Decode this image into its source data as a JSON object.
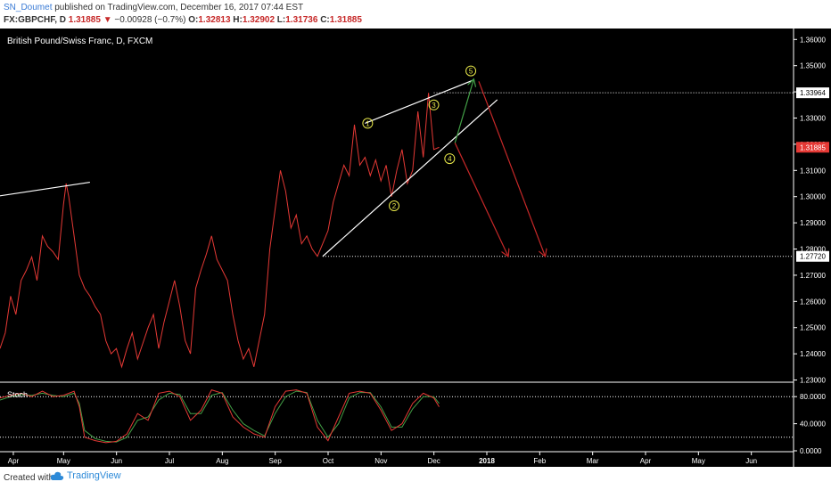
{
  "header": {
    "author": "SN_Doumet",
    "published_text": "published on TradingView.com, December 16, 2017 07:44 EST",
    "symbol": "FX:GBPCHF, D",
    "close_main": "1.31885",
    "change": "−0.00928 (−0.7%)",
    "o_label": "O:",
    "o_val": "1.32813",
    "h_label": "H:",
    "h_val": "1.32902",
    "l_label": "L:",
    "l_val": "1.31736",
    "c_label": "C:",
    "c_val": "1.31885"
  },
  "footer": {
    "created_with": "Created with",
    "brand": "TradingView"
  },
  "chart_data": {
    "type": "line",
    "title": "British Pound/Swiss Franc, D, FXCM",
    "price_axis": {
      "ticks": [
        "1.36000",
        "1.35000",
        "1.34000",
        "1.33000",
        "1.32000",
        "1.31000",
        "1.30000",
        "1.29000",
        "1.28000",
        "1.27000",
        "1.26000",
        "1.25000",
        "1.24000",
        "1.23000"
      ],
      "ylim": [
        1.2295,
        1.3635
      ],
      "badges": [
        {
          "value": 1.33964,
          "label": "1.33964",
          "color": "#ffffff",
          "text_color": "#000000"
        },
        {
          "value": 1.31885,
          "label": "1.31885",
          "color": "#e53935",
          "text_color": "#ffffff"
        },
        {
          "value": 1.2772,
          "label": "1.27720",
          "color": "#ffffff",
          "text_color": "#000000"
        }
      ]
    },
    "x_axis": {
      "labels": [
        "Apr",
        "May",
        "Jun",
        "Jul",
        "Aug",
        "Sep",
        "Oct",
        "Nov",
        "Dec",
        "2018",
        "Feb",
        "Mar",
        "Apr",
        "May",
        "Jun"
      ],
      "xlim": [
        0,
        15
      ],
      "ticks_at": [
        0.05,
        1.0,
        2.0,
        3.0,
        4.0,
        5.0,
        6.0,
        7.0,
        8.0,
        9.0,
        10.0,
        11.0,
        12.0,
        13.0,
        14.0
      ]
    },
    "price_series": {
      "color": "#e53935",
      "x": [
        0.0,
        0.1,
        0.2,
        0.3,
        0.4,
        0.5,
        0.6,
        0.7,
        0.8,
        0.9,
        1.0,
        1.1,
        1.2,
        1.25,
        1.3,
        1.4,
        1.5,
        1.6,
        1.7,
        1.8,
        1.9,
        2.0,
        2.1,
        2.2,
        2.3,
        2.4,
        2.5,
        2.6,
        2.7,
        2.8,
        2.9,
        3.0,
        3.1,
        3.2,
        3.3,
        3.4,
        3.5,
        3.6,
        3.7,
        3.8,
        3.9,
        4.0,
        4.1,
        4.2,
        4.3,
        4.4,
        4.5,
        4.6,
        4.7,
        4.8,
        4.9,
        5.0,
        5.1,
        5.2,
        5.3,
        5.4,
        5.5,
        5.6,
        5.7,
        5.8,
        5.9,
        6.0,
        6.1,
        6.2,
        6.3,
        6.4,
        6.5,
        6.6,
        6.7,
        6.8,
        6.9,
        7.0,
        7.1,
        7.2,
        7.3,
        7.4,
        7.5,
        7.6,
        7.7,
        7.8,
        7.9,
        8.0,
        8.1,
        8.2,
        8.3
      ],
      "y": [
        1.242,
        1.248,
        1.262,
        1.255,
        1.268,
        1.272,
        1.277,
        1.268,
        1.285,
        1.281,
        1.279,
        1.276,
        1.297,
        1.305,
        1.3,
        1.285,
        1.27,
        1.265,
        1.262,
        1.258,
        1.255,
        1.245,
        1.24,
        1.242,
        1.235,
        1.242,
        1.248,
        1.238,
        1.244,
        1.25,
        1.255,
        1.242,
        1.252,
        1.26,
        1.268,
        1.258,
        1.245,
        1.24,
        1.265,
        1.272,
        1.278,
        1.285,
        1.276,
        1.272,
        1.268,
        1.255,
        1.245,
        1.238,
        1.242,
        1.235,
        1.245,
        1.255,
        1.28,
        1.295,
        1.31,
        1.302,
        1.288,
        1.293,
        1.282,
        1.285,
        1.28,
        1.2772,
        1.282,
        1.287,
        1.298,
        1.305,
        1.312,
        1.308,
        1.3275,
        1.312,
        1.315,
        1.308,
        1.314,
        1.306,
        1.312,
        1.3,
        1.31,
        1.318,
        1.305,
        1.31,
        1.3325,
        1.315,
        1.3396,
        1.318,
        1.3188
      ]
    },
    "annotations": {
      "labels": [
        "1",
        "2",
        "3",
        "4",
        "5"
      ],
      "label_points": [
        [
          6.95,
          1.328
        ],
        [
          7.45,
          1.2965
        ],
        [
          8.2,
          1.335
        ],
        [
          8.5,
          1.3145
        ],
        [
          8.9,
          1.348
        ]
      ],
      "white_lines": [
        [
          [
            -0.1,
            1.3
          ],
          [
            1.7,
            1.3055
          ]
        ],
        [
          [
            6.1,
            1.2772
          ],
          [
            9.4,
            1.337
          ]
        ],
        [
          [
            6.9,
            1.328
          ],
          [
            8.95,
            1.3445
          ]
        ]
      ],
      "dotted_levels": [
        1.33964,
        1.2772
      ],
      "green_arrow": [
        [
          8.6,
          1.3205
        ],
        [
          8.95,
          1.3445
        ]
      ],
      "red_arrows": [
        [
          [
            8.6,
            1.3205
          ],
          [
            9.6,
            1.2775
          ]
        ],
        [
          [
            9.05,
            1.344
          ],
          [
            10.3,
            1.2775
          ]
        ]
      ]
    },
    "stochastic": {
      "label": "Stoch",
      "ticks": [
        "80.0000",
        "40.0000",
        "0.0000"
      ],
      "ylim": [
        0,
        100
      ],
      "upper_band": 80,
      "lower_band": 20,
      "k_color": "#e53935",
      "d_color": "#43a047",
      "x": [
        0.0,
        0.2,
        0.4,
        0.6,
        0.8,
        1.0,
        1.2,
        1.4,
        1.5,
        1.6,
        1.8,
        2.0,
        2.2,
        2.4,
        2.6,
        2.8,
        3.0,
        3.2,
        3.4,
        3.6,
        3.8,
        4.0,
        4.2,
        4.4,
        4.6,
        4.8,
        5.0,
        5.2,
        5.4,
        5.6,
        5.8,
        6.0,
        6.2,
        6.4,
        6.6,
        6.8,
        7.0,
        7.2,
        7.4,
        7.6,
        7.8,
        8.0,
        8.2,
        8.3
      ],
      "k": [
        78,
        82,
        85,
        80,
        88,
        80,
        82,
        88,
        65,
        20,
        15,
        12,
        14,
        25,
        55,
        45,
        85,
        88,
        80,
        45,
        60,
        90,
        85,
        50,
        35,
        25,
        20,
        65,
        88,
        90,
        85,
        35,
        15,
        50,
        85,
        88,
        85,
        60,
        30,
        40,
        70,
        85,
        78,
        65
      ],
      "d": [
        75,
        80,
        83,
        82,
        85,
        82,
        80,
        85,
        70,
        30,
        18,
        14,
        13,
        20,
        45,
        50,
        75,
        85,
        83,
        55,
        55,
        82,
        86,
        60,
        40,
        30,
        22,
        55,
        80,
        88,
        86,
        45,
        20,
        40,
        78,
        86,
        86,
        65,
        35,
        35,
        62,
        80,
        80,
        70
      ]
    }
  }
}
